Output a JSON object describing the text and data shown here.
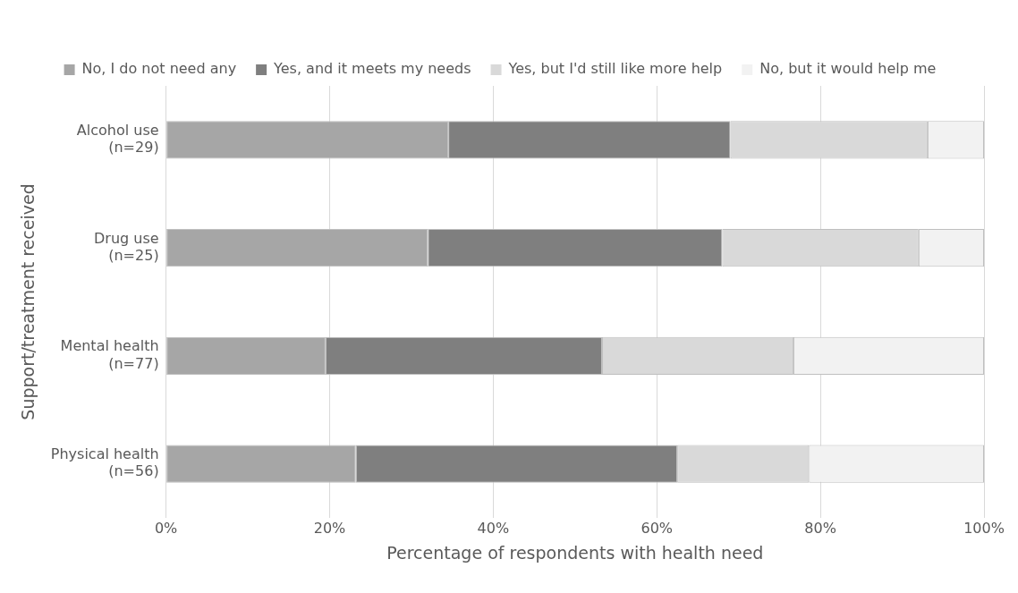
{
  "chart_data": {
    "type": "bar",
    "orientation": "horizontal",
    "stacked": true,
    "categories": [
      "Alcohol use (n=29)",
      "Drug use (n=25)",
      "Mental health (n=77)",
      "Physical health (n=56)"
    ],
    "series": [
      {
        "name": "No, I do not need any",
        "color": "#a6a6a6",
        "values": [
          34.5,
          32,
          19.5,
          23.2
        ]
      },
      {
        "name": "Yes, and it meets my needs",
        "color": "#7f7f7f",
        "values": [
          34.5,
          36,
          33.8,
          39.3
        ]
      },
      {
        "name": "Yes, but I'd still like more help",
        "color": "#d9d9d9",
        "values": [
          24.1,
          24,
          23.4,
          16.1
        ]
      },
      {
        "name": "No, but it would help me",
        "color": "#f2f2f2",
        "values": [
          6.9,
          8,
          23.3,
          21.4
        ]
      }
    ],
    "xlim": [
      0,
      100
    ],
    "xticks": [
      {
        "value": 0,
        "label": "0%"
      },
      {
        "value": 20,
        "label": "20%"
      },
      {
        "value": 40,
        "label": "40%"
      },
      {
        "value": 60,
        "label": "60%"
      },
      {
        "value": 80,
        "label": "80%"
      },
      {
        "value": 100,
        "label": "100%"
      }
    ],
    "xlabel": "Percentage of respondents with health need",
    "ylabel": "Support/treatment received",
    "grid": "x",
    "legend": "top"
  }
}
